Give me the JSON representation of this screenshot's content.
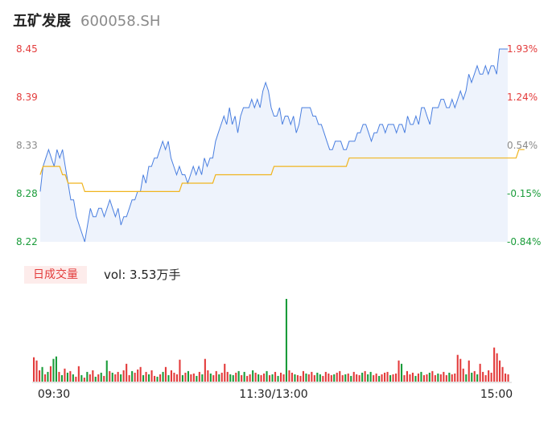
{
  "header": {
    "name": "五矿发展",
    "code": "600058.SH"
  },
  "volume_panel": {
    "tag": "日成交量",
    "vol_prefix": "vol: ",
    "vol_value": "3.53万手"
  },
  "colors": {
    "price_line": "#4a7fe0",
    "price_fill": "#eef3fc",
    "avg_line": "#f0b41e",
    "up": "#e33b3b",
    "down": "#1a9c3a",
    "neutral": "#8a8a8a"
  },
  "chart_data": {
    "type": "line",
    "price_axis": {
      "ticks": [
        "8.45",
        "8.39",
        "8.33",
        "8.28",
        "8.22"
      ],
      "ylim": [
        8.22,
        8.45
      ],
      "prev_close": 8.29
    },
    "pct_axis": {
      "ticks": [
        "1.93%",
        "1.24%",
        "0.54%",
        "-0.15%",
        "-0.84%"
      ]
    },
    "x_ticks": [
      "09:30",
      "11:30/13:00",
      "15:00"
    ],
    "series": [
      {
        "values": [
          8.28,
          8.31,
          8.32,
          8.33,
          8.32,
          8.31,
          8.33,
          8.32,
          8.33,
          8.31,
          8.29,
          8.27,
          8.27,
          8.25,
          8.24,
          8.23,
          8.22,
          8.24,
          8.26,
          8.25,
          8.25,
          8.26,
          8.26,
          8.25,
          8.26,
          8.27,
          8.26,
          8.25,
          8.26,
          8.24,
          8.25,
          8.25,
          8.26,
          8.27,
          8.27,
          8.28,
          8.28,
          8.3,
          8.29,
          8.31,
          8.31,
          8.32,
          8.32,
          8.33,
          8.34,
          8.33,
          8.34,
          8.32,
          8.31,
          8.3,
          8.31,
          8.3,
          8.3,
          8.29,
          8.3,
          8.31,
          8.3,
          8.31,
          8.3,
          8.32,
          8.31,
          8.32,
          8.32,
          8.34,
          8.35,
          8.36,
          8.37,
          8.36,
          8.38,
          8.36,
          8.37,
          8.35,
          8.37,
          8.38,
          8.38,
          8.38,
          8.39,
          8.38,
          8.39,
          8.38,
          8.4,
          8.41,
          8.4,
          8.38,
          8.37,
          8.37,
          8.38,
          8.36,
          8.37,
          8.37,
          8.36,
          8.37,
          8.35,
          8.36,
          8.38,
          8.38,
          8.38,
          8.38,
          8.37,
          8.37,
          8.36,
          8.36,
          8.35,
          8.34,
          8.33,
          8.33,
          8.34,
          8.34,
          8.34,
          8.33,
          8.33,
          8.34,
          8.34,
          8.34,
          8.35,
          8.35,
          8.36,
          8.36,
          8.35,
          8.34,
          8.35,
          8.35,
          8.36,
          8.36,
          8.35,
          8.36,
          8.36,
          8.36,
          8.35,
          8.36,
          8.36,
          8.35,
          8.37,
          8.36,
          8.36,
          8.37,
          8.36,
          8.38,
          8.38,
          8.37,
          8.36,
          8.38,
          8.38,
          8.38,
          8.39,
          8.39,
          8.38,
          8.38,
          8.39,
          8.38,
          8.39,
          8.4,
          8.39,
          8.4,
          8.42,
          8.41,
          8.42,
          8.43,
          8.42,
          8.42,
          8.43,
          8.42,
          8.43,
          8.43,
          8.42,
          8.45,
          8.45,
          8.45,
          8.45
        ],
        "color": "#4a7fe0"
      },
      {
        "values": [
          8.3,
          8.31,
          8.31,
          8.31,
          8.31,
          8.31,
          8.31,
          8.31,
          8.3,
          8.3,
          8.29,
          8.29,
          8.29,
          8.29,
          8.29,
          8.29,
          8.28,
          8.28,
          8.28,
          8.28,
          8.28,
          8.28,
          8.28,
          8.28,
          8.28,
          8.28,
          8.28,
          8.28,
          8.28,
          8.28,
          8.28,
          8.28,
          8.28,
          8.28,
          8.28,
          8.28,
          8.28,
          8.28,
          8.28,
          8.28,
          8.28,
          8.28,
          8.28,
          8.28,
          8.28,
          8.28,
          8.28,
          8.28,
          8.28,
          8.28,
          8.28,
          8.29,
          8.29,
          8.29,
          8.29,
          8.29,
          8.29,
          8.29,
          8.29,
          8.29,
          8.29,
          8.29,
          8.29,
          8.3,
          8.3,
          8.3,
          8.3,
          8.3,
          8.3,
          8.3,
          8.3,
          8.3,
          8.3,
          8.3,
          8.3,
          8.3,
          8.3,
          8.3,
          8.3,
          8.3,
          8.3,
          8.3,
          8.3,
          8.3,
          8.31,
          8.31,
          8.31,
          8.31,
          8.31,
          8.31,
          8.31,
          8.31,
          8.31,
          8.31,
          8.31,
          8.31,
          8.31,
          8.31,
          8.31,
          8.31,
          8.31,
          8.31,
          8.31,
          8.31,
          8.31,
          8.31,
          8.31,
          8.31,
          8.31,
          8.31,
          8.31,
          8.32,
          8.32,
          8.32,
          8.32,
          8.32,
          8.32,
          8.32,
          8.32,
          8.32,
          8.32,
          8.32,
          8.32,
          8.32,
          8.32,
          8.32,
          8.32,
          8.32,
          8.32,
          8.32,
          8.32,
          8.32,
          8.32,
          8.32,
          8.32,
          8.32,
          8.32,
          8.32,
          8.32,
          8.32,
          8.32,
          8.32,
          8.32,
          8.32,
          8.32,
          8.32,
          8.32,
          8.32,
          8.32,
          8.32,
          8.32,
          8.32,
          8.32,
          8.32,
          8.32,
          8.32,
          8.32,
          8.32,
          8.32,
          8.32,
          8.32,
          8.32,
          8.32,
          8.32,
          8.32,
          8.32,
          8.32,
          8.32,
          8.32,
          8.32,
          8.32,
          8.32,
          8.33,
          8.33,
          8.33
        ],
        "color": "#f0b41e"
      }
    ],
    "volume": {
      "values": [
        30,
        26,
        14,
        18,
        9,
        12,
        19,
        28,
        31,
        12,
        8,
        16,
        11,
        13,
        9,
        6,
        19,
        8,
        5,
        12,
        9,
        14,
        6,
        9,
        11,
        7,
        26,
        13,
        11,
        9,
        12,
        9,
        14,
        22,
        8,
        13,
        11,
        15,
        18,
        8,
        12,
        9,
        14,
        7,
        6,
        9,
        12,
        18,
        8,
        14,
        11,
        9,
        27,
        8,
        11,
        13,
        9,
        10,
        7,
        12,
        9,
        28,
        14,
        10,
        8,
        13,
        9,
        11,
        22,
        12,
        9,
        8,
        11,
        13,
        8,
        12,
        7,
        9,
        14,
        11,
        9,
        8,
        10,
        13,
        8,
        9,
        12,
        7,
        11,
        9,
        102,
        14,
        11,
        9,
        8,
        7,
        13,
        10,
        9,
        12,
        8,
        11,
        9,
        7,
        12,
        10,
        8,
        9,
        11,
        13,
        8,
        9,
        10,
        7,
        12,
        9,
        8,
        11,
        13,
        9,
        12,
        8,
        10,
        7,
        9,
        11,
        12,
        8,
        9,
        10,
        26,
        22,
        8,
        13,
        9,
        11,
        7,
        10,
        12,
        8,
        9,
        11,
        13,
        8,
        10,
        9,
        12,
        8,
        11,
        9,
        10,
        33,
        28,
        16,
        9,
        26,
        11,
        13,
        9,
        22,
        12,
        8,
        14,
        11,
        42,
        35,
        26,
        18,
        10,
        9
      ],
      "dir": [
        "u",
        "u",
        "u",
        "d",
        "u",
        "d",
        "u",
        "d",
        "d",
        "u",
        "d",
        "u",
        "d",
        "u",
        "d",
        "u",
        "u",
        "d",
        "u",
        "d",
        "u",
        "u",
        "d",
        "u",
        "d",
        "u",
        "d",
        "u",
        "d",
        "u",
        "u",
        "d",
        "u",
        "u",
        "u",
        "d",
        "u",
        "u",
        "u",
        "d",
        "u",
        "d",
        "u",
        "u",
        "d",
        "u",
        "d",
        "u",
        "d",
        "u",
        "u",
        "u",
        "u",
        "d",
        "u",
        "d",
        "u",
        "u",
        "d",
        "u",
        "d",
        "u",
        "u",
        "d",
        "u",
        "u",
        "d",
        "u",
        "u",
        "u",
        "d",
        "d",
        "u",
        "d",
        "u",
        "d",
        "u",
        "u",
        "d",
        "u",
        "d",
        "u",
        "u",
        "d",
        "u",
        "d",
        "u",
        "d",
        "u",
        "u",
        "d",
        "u",
        "u",
        "d",
        "u",
        "u",
        "u",
        "d",
        "u",
        "u",
        "u",
        "d",
        "d",
        "u",
        "u",
        "u",
        "u",
        "d",
        "u",
        "u",
        "u",
        "d",
        "u",
        "d",
        "u",
        "u",
        "u",
        "d",
        "u",
        "d",
        "d",
        "u",
        "u",
        "d",
        "u",
        "u",
        "u",
        "d",
        "u",
        "u",
        "u",
        "d",
        "u",
        "u",
        "u",
        "u",
        "d",
        "u",
        "d",
        "u",
        "u",
        "d",
        "u",
        "u",
        "d",
        "u",
        "u",
        "u",
        "d",
        "u",
        "u",
        "u",
        "u",
        "u",
        "d",
        "u",
        "d",
        "u",
        "d",
        "u",
        "u",
        "u",
        "u",
        "u",
        "u",
        "u",
        "u",
        "u",
        "u",
        "u",
        "d"
      ]
    }
  }
}
